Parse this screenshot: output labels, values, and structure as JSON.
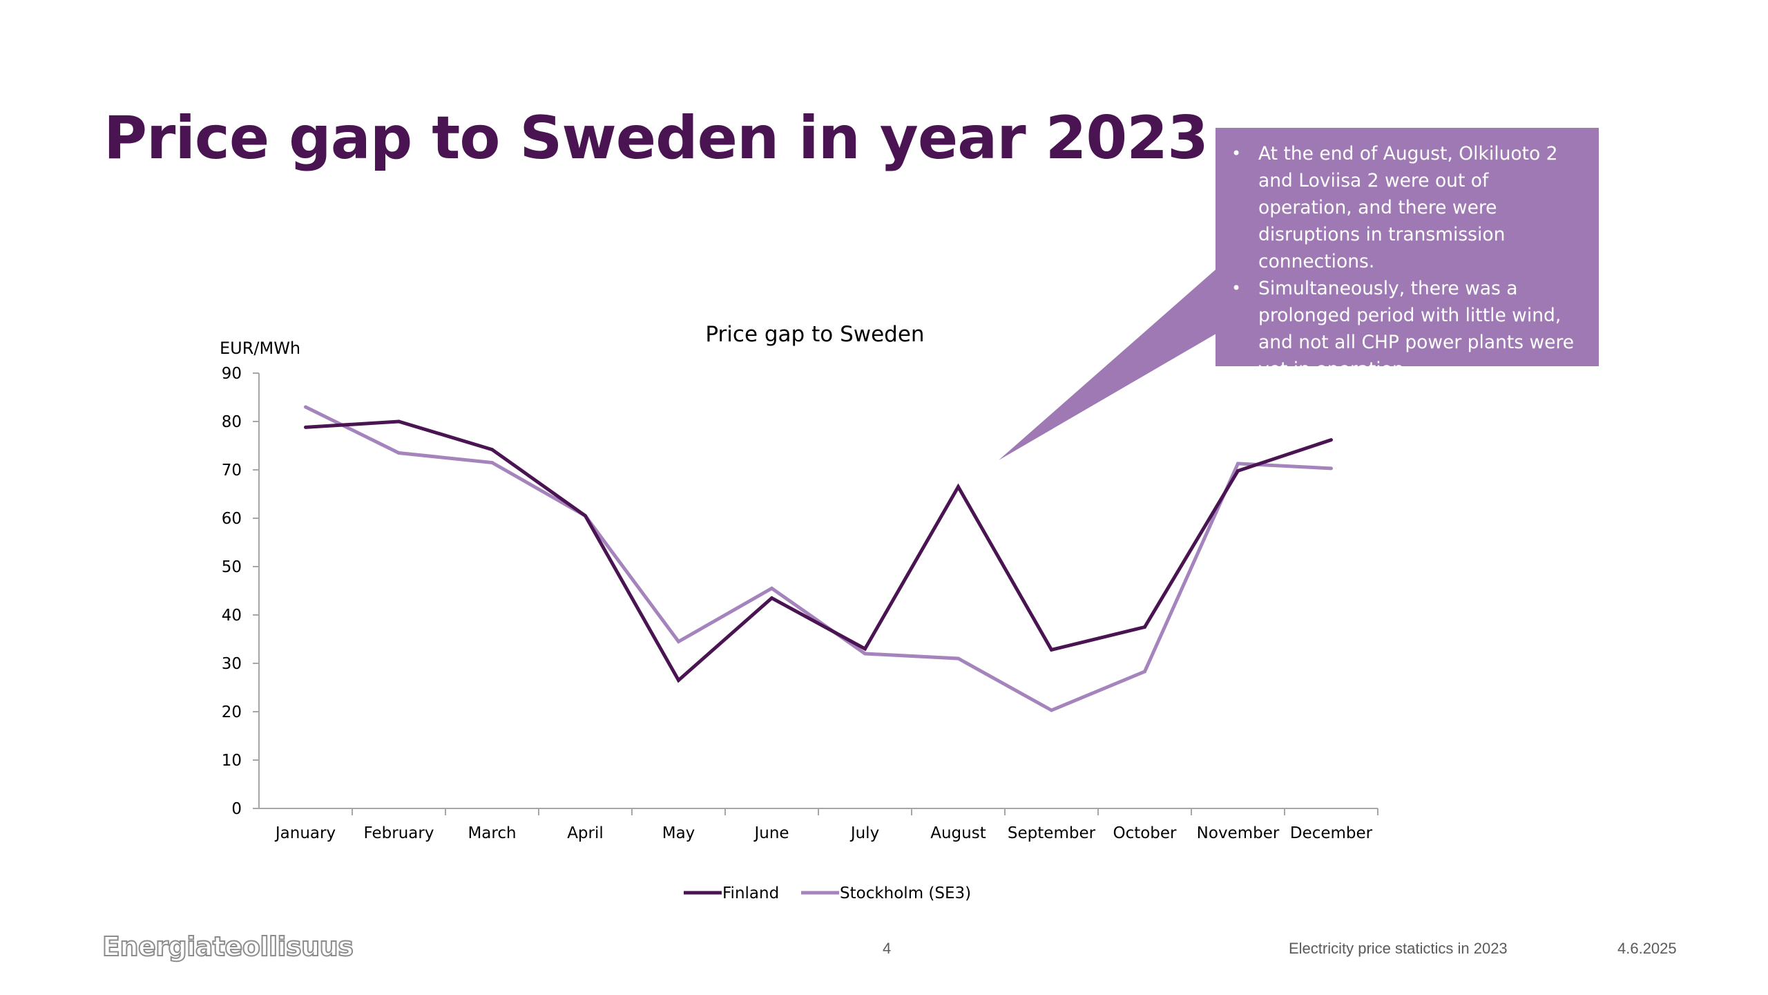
{
  "slide": {
    "title": "Price gap to Sweden in year 2023"
  },
  "callout": {
    "bullets": [
      "At the end of August, Olkiluoto 2 and Loviisa 2 were out of operation, and there were disruptions in transmission connections.",
      "Simultaneously, there was a prolonged period with little wind, and not all CHP power plants were yet in operation."
    ]
  },
  "chart_data": {
    "type": "line",
    "title": "Price gap to Sweden",
    "ylabel": "EUR/MWh",
    "xlabel": "",
    "ylim": [
      0,
      90
    ],
    "yticks": [
      0,
      10,
      20,
      30,
      40,
      50,
      60,
      70,
      80,
      90
    ],
    "grid": false,
    "legend_position": "bottom",
    "categories": [
      "January",
      "February",
      "March",
      "April",
      "May",
      "June",
      "July",
      "August",
      "September",
      "October",
      "November",
      "December"
    ],
    "series": [
      {
        "name": "Finland",
        "color": "#4a1452",
        "values": [
          78.8,
          80.0,
          74.2,
          60.5,
          26.5,
          43.5,
          33.0,
          66.5,
          32.8,
          37.5,
          69.8,
          76.2
        ]
      },
      {
        "name": "Stockholm (SE3)",
        "color": "#a583bd",
        "values": [
          83.0,
          73.5,
          71.5,
          60.5,
          34.5,
          45.5,
          32.0,
          31.0,
          20.3,
          28.3,
          71.3,
          70.3
        ]
      }
    ]
  },
  "footer": {
    "logo": "Energiateollisuus",
    "page_number": "4",
    "doc_title": "Electricity price statictics in 2023",
    "date": "4.6.2025"
  },
  "colors": {
    "title": "#4a1452",
    "callout_bg": "#9f79b4",
    "axis": "#a6a6a6"
  }
}
